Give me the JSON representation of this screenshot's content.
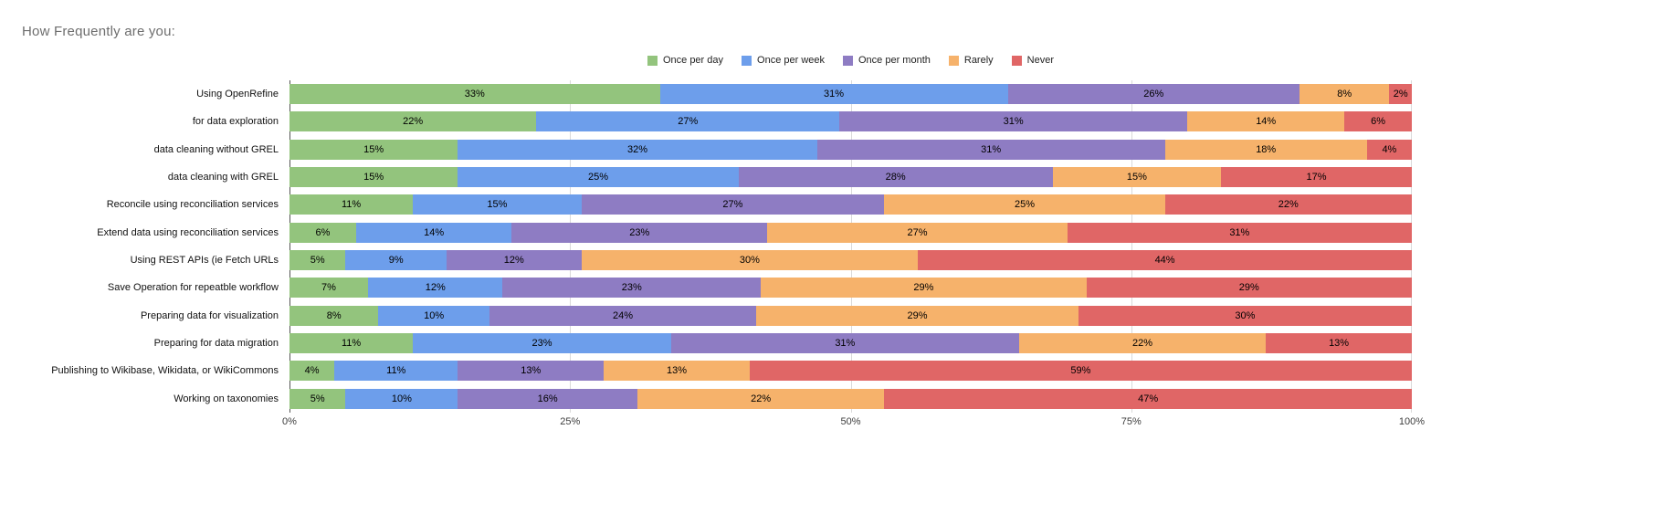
{
  "title": "How Frequently are you:",
  "chart_data": {
    "type": "bar",
    "stacked": true,
    "orientation": "horizontal",
    "title": "How Frequently are you:",
    "legend_position": "top",
    "grid": true,
    "xlim": [
      0,
      100
    ],
    "x_ticks": [
      "0%",
      "25%",
      "50%",
      "75%",
      "100%"
    ],
    "x_tick_values": [
      0,
      25,
      50,
      75,
      100
    ],
    "unit": "%",
    "categories": [
      "Using OpenRefine",
      "for data exploration",
      "data cleaning without GREL",
      "data cleaning with GREL",
      "Reconcile using reconciliation services",
      "Extend data using reconciliation services",
      "Using REST APIs (ie Fetch URLs",
      "Save Operation for repeatble workflow",
      "Preparing data for visualization",
      "Preparing for data migration",
      "Publishing to Wikibase, Wikidata, or WikiCommons",
      "Working on taxonomies"
    ],
    "series": [
      {
        "name": "Once per day",
        "color": "#93c47d",
        "values": [
          33,
          22,
          15,
          15,
          11,
          6,
          5,
          7,
          8,
          11,
          4,
          5
        ]
      },
      {
        "name": "Once per week",
        "color": "#6d9eeb",
        "values": [
          31,
          27,
          32,
          25,
          15,
          14,
          9,
          12,
          10,
          23,
          11,
          10
        ]
      },
      {
        "name": "Once per month",
        "color": "#8e7cc3",
        "values": [
          26,
          31,
          31,
          28,
          27,
          23,
          12,
          23,
          24,
          31,
          13,
          16
        ]
      },
      {
        "name": "Rarely",
        "color": "#f6b26b",
        "values": [
          8,
          14,
          18,
          15,
          25,
          27,
          30,
          29,
          29,
          22,
          13,
          22
        ]
      },
      {
        "name": "Never",
        "color": "#e06666",
        "values": [
          2,
          6,
          4,
          17,
          22,
          31,
          44,
          29,
          30,
          13,
          59,
          47
        ]
      }
    ]
  }
}
